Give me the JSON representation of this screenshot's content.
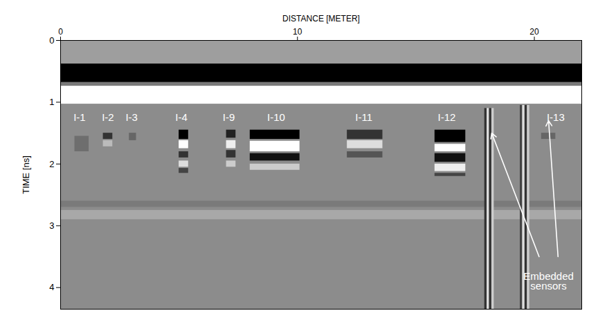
{
  "chart_data": {
    "type": "radargram",
    "xlabel": "DISTANCE [METER]",
    "ylabel": "TIME [ns]",
    "xlim": [
      0,
      22
    ],
    "ylim": [
      0,
      4.35
    ],
    "xticks": [
      0,
      10,
      20
    ],
    "yticks": [
      0,
      1,
      2,
      3,
      4
    ],
    "color": "#8c8c8c",
    "bands": [
      {
        "x1": 0,
        "x2": 22,
        "y1": 0,
        "y2": 0.38,
        "color": "#9e9e9e"
      },
      {
        "x1": 0,
        "x2": 22,
        "y1": 0.38,
        "y2": 0.68,
        "color": "#000000"
      },
      {
        "x1": 0,
        "x2": 22,
        "y1": 0.68,
        "y2": 0.74,
        "color": "#7a7a7a"
      },
      {
        "x1": 0,
        "x2": 22,
        "y1": 0.74,
        "y2": 1.03,
        "color": "#ffffff"
      },
      {
        "x1": 0,
        "x2": 22,
        "y1": 2.6,
        "y2": 2.7,
        "color": "#7a7a7a"
      },
      {
        "x1": 0,
        "x2": 22,
        "y1": 2.75,
        "y2": 2.9,
        "color": "#a8a8a8"
      },
      {
        "x1": 0.6,
        "x2": 1.2,
        "y1": 1.55,
        "y2": 1.8,
        "color": "#6e6e6e"
      },
      {
        "x1": 1.8,
        "x2": 2.2,
        "y1": 1.5,
        "y2": 1.6,
        "color": "#333333"
      },
      {
        "x1": 1.8,
        "x2": 2.2,
        "y1": 1.62,
        "y2": 1.72,
        "color": "#bbbbbb"
      },
      {
        "x1": 2.9,
        "x2": 3.2,
        "y1": 1.5,
        "y2": 1.62,
        "color": "#666666"
      },
      {
        "x1": 5.0,
        "x2": 5.4,
        "y1": 1.45,
        "y2": 1.6,
        "color": "#000000"
      },
      {
        "x1": 5.0,
        "x2": 5.4,
        "y1": 1.62,
        "y2": 1.75,
        "color": "#ffffff"
      },
      {
        "x1": 5.0,
        "x2": 5.4,
        "y1": 1.8,
        "y2": 1.9,
        "color": "#333333"
      },
      {
        "x1": 5.0,
        "x2": 5.4,
        "y1": 1.95,
        "y2": 2.05,
        "color": "#dddddd"
      },
      {
        "x1": 5.0,
        "x2": 5.4,
        "y1": 2.07,
        "y2": 2.15,
        "color": "#444444"
      },
      {
        "x1": 7.0,
        "x2": 7.4,
        "y1": 1.45,
        "y2": 1.58,
        "color": "#222222"
      },
      {
        "x1": 7.0,
        "x2": 7.4,
        "y1": 1.62,
        "y2": 1.75,
        "color": "#eeeeee"
      },
      {
        "x1": 7.0,
        "x2": 7.4,
        "y1": 1.78,
        "y2": 1.9,
        "color": "#333333"
      },
      {
        "x1": 7.0,
        "x2": 7.4,
        "y1": 1.95,
        "y2": 2.05,
        "color": "#cccccc"
      },
      {
        "x1": 8.0,
        "x2": 10.1,
        "y1": 1.45,
        "y2": 1.6,
        "color": "#000000"
      },
      {
        "x1": 8.0,
        "x2": 10.1,
        "y1": 1.63,
        "y2": 1.8,
        "color": "#ffffff"
      },
      {
        "x1": 8.0,
        "x2": 10.1,
        "y1": 1.83,
        "y2": 1.95,
        "color": "#111111"
      },
      {
        "x1": 8.0,
        "x2": 10.1,
        "y1": 2.0,
        "y2": 2.1,
        "color": "#cccccc"
      },
      {
        "x1": 12.1,
        "x2": 13.6,
        "y1": 1.45,
        "y2": 1.6,
        "color": "#333333"
      },
      {
        "x1": 12.1,
        "x2": 13.6,
        "y1": 1.62,
        "y2": 1.75,
        "color": "#dddddd"
      },
      {
        "x1": 12.1,
        "x2": 13.6,
        "y1": 1.8,
        "y2": 1.9,
        "color": "#555555"
      },
      {
        "x1": 15.8,
        "x2": 17.1,
        "y1": 1.45,
        "y2": 1.65,
        "color": "#000000"
      },
      {
        "x1": 15.8,
        "x2": 17.1,
        "y1": 1.68,
        "y2": 1.8,
        "color": "#ffffff"
      },
      {
        "x1": 15.8,
        "x2": 17.1,
        "y1": 1.83,
        "y2": 1.97,
        "color": "#111111"
      },
      {
        "x1": 15.8,
        "x2": 17.1,
        "y1": 2.0,
        "y2": 2.12,
        "color": "#eeeeee"
      },
      {
        "x1": 15.8,
        "x2": 17.1,
        "y1": 2.15,
        "y2": 2.2,
        "color": "#444444"
      },
      {
        "x1": 17.9,
        "x2": 18.0,
        "y1": 1.1,
        "y2": 4.35,
        "color": "#333333"
      },
      {
        "x1": 18.0,
        "x2": 18.1,
        "y1": 1.1,
        "y2": 4.35,
        "color": "#dddddd"
      },
      {
        "x1": 18.1,
        "x2": 18.2,
        "y1": 1.1,
        "y2": 4.35,
        "color": "#333333"
      },
      {
        "x1": 18.2,
        "x2": 18.3,
        "y1": 1.1,
        "y2": 4.35,
        "color": "#cccccc"
      },
      {
        "x1": 19.4,
        "x2": 19.5,
        "y1": 1.05,
        "y2": 4.35,
        "color": "#444444"
      },
      {
        "x1": 19.5,
        "x2": 19.6,
        "y1": 1.05,
        "y2": 4.35,
        "color": "#dddddd"
      },
      {
        "x1": 19.6,
        "x2": 19.7,
        "y1": 1.05,
        "y2": 4.35,
        "color": "#333333"
      },
      {
        "x1": 19.7,
        "x2": 19.8,
        "y1": 1.05,
        "y2": 4.35,
        "color": "#cccccc"
      },
      {
        "x1": 20.3,
        "x2": 20.9,
        "y1": 1.5,
        "y2": 1.6,
        "color": "#666666"
      }
    ],
    "annotations": [
      {
        "text": "I-1",
        "x": 0.8,
        "y": 1.25
      },
      {
        "text": "I-2",
        "x": 2.0,
        "y": 1.25
      },
      {
        "text": "I-3",
        "x": 3.0,
        "y": 1.25
      },
      {
        "text": "I-4",
        "x": 5.1,
        "y": 1.25
      },
      {
        "text": "I-9",
        "x": 7.1,
        "y": 1.25
      },
      {
        "text": "I-10",
        "x": 9.1,
        "y": 1.25
      },
      {
        "text": "I-11",
        "x": 12.8,
        "y": 1.25
      },
      {
        "text": "I-12",
        "x": 16.3,
        "y": 1.25
      },
      {
        "text": "I-13",
        "x": 20.9,
        "y": 1.25
      }
    ],
    "callout": {
      "text": "Embedded sensors",
      "x": 20.6,
      "y": 3.75,
      "arrows": [
        {
          "x1": 20.2,
          "y1": 3.5,
          "x2": 18.2,
          "y2": 1.5
        },
        {
          "x1": 21.0,
          "y1": 3.5,
          "x2": 20.6,
          "y2": 1.3
        }
      ]
    }
  }
}
